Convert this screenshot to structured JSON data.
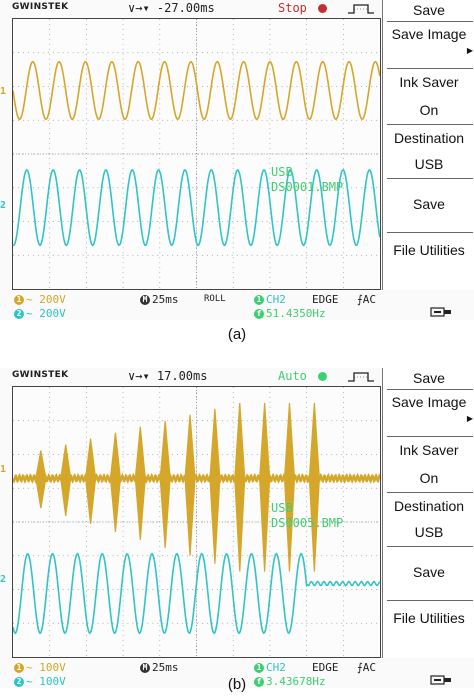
{
  "panels": [
    {
      "id": "a",
      "brand": "GWINSTEK",
      "timebase_indicator": "∨→▾ -27.00ms",
      "run_state": "Stop",
      "run_state_color": "#c03030",
      "ch1_color": "#d4a62a",
      "ch2_color": "#30c4c4",
      "usb_line1": "USB",
      "usb_line2": "DS0001.BMP",
      "bottom": {
        "ch1_scale": "200V",
        "ch2_scale": "200V",
        "time_scale": "25ms",
        "mode": "ROLL",
        "trig_source": "CH2",
        "trig_type": "EDGE",
        "coupling": "AC",
        "frequency": "51.4350Hz"
      },
      "menu": [
        "Save",
        "Save Image",
        "Ink Saver",
        "On",
        "Destination",
        "USB",
        "Save",
        "File Utilities"
      ],
      "caption": "(a)"
    },
    {
      "id": "b",
      "brand": "GWINSTEK",
      "timebase_indicator": "∨→▾ 17.00ms",
      "run_state": "Auto",
      "run_state_color": "#3fcf70",
      "ch1_color": "#d4a62a",
      "ch2_color": "#30c4c4",
      "usb_line1": "USB",
      "usb_line2": "DS0005.BMP",
      "bottom": {
        "ch1_scale": "100V",
        "ch2_scale": "100V",
        "time_scale": "25ms",
        "mode": "",
        "trig_source": "CH2",
        "trig_type": "EDGE",
        "coupling": "AC",
        "frequency": "3.43678Hz"
      },
      "menu": [
        "Save",
        "Save Image",
        "Ink Saver",
        "On",
        "Destination",
        "USB",
        "Save",
        "File Utilities"
      ],
      "caption": "(b)"
    }
  ],
  "icons": {
    "ch1_marker": "1",
    "ch2_marker": "2",
    "ac_symbol": "~",
    "time_icon": "M",
    "ch1_badge": "1",
    "ch2_badge": "2",
    "freq_badge": "f"
  }
}
